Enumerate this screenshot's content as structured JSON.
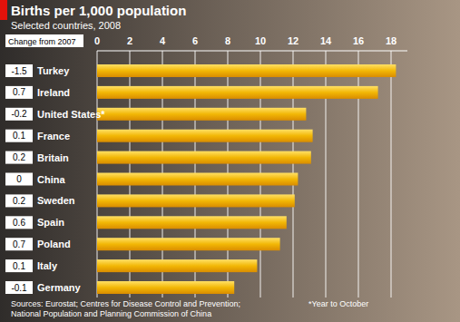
{
  "chart_data": {
    "type": "bar",
    "orientation": "horizontal",
    "title": "Births per 1,000 population",
    "subtitle": "Selected countries, 2008",
    "categories": [
      "Turkey",
      "Ireland",
      "United States*",
      "France",
      "Britain",
      "China",
      "Sweden",
      "Spain",
      "Poland",
      "Italy",
      "Germany"
    ],
    "values": [
      18.3,
      17.2,
      12.8,
      13.2,
      13.1,
      12.3,
      12.1,
      11.6,
      11.2,
      9.8,
      8.4
    ],
    "change_label": "Change from 2007",
    "changes": [
      -1.5,
      0.7,
      -0.2,
      0.1,
      0.2,
      0,
      0.2,
      0.6,
      0.7,
      0.1,
      -0.1
    ],
    "color": "#f2b705",
    "xlim": [
      0,
      19
    ],
    "xticks": [
      0,
      2,
      4,
      6,
      8,
      10,
      12,
      14,
      16,
      18
    ],
    "grid": true,
    "footnote": "*Year to October",
    "sources": [
      "Sources: Eurostat; Centres for Disease Control and Prevention;",
      "National Population and Planning Commission of China"
    ]
  }
}
